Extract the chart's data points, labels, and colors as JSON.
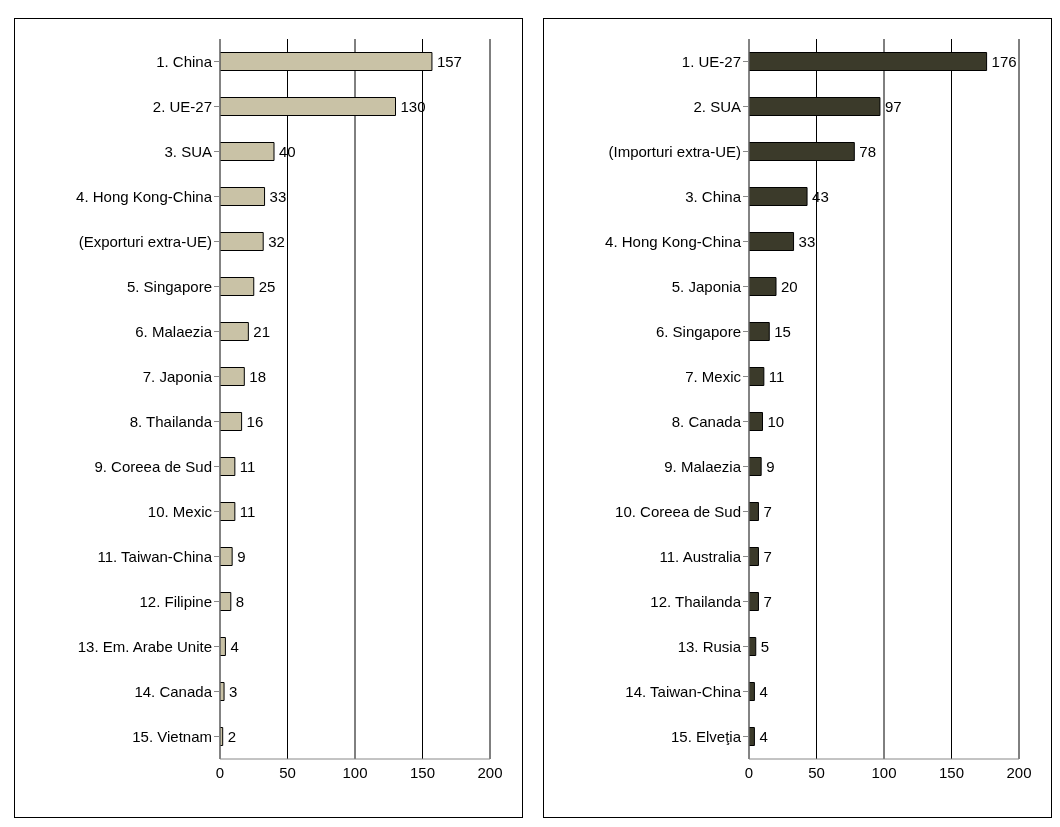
{
  "chart_data": [
    {
      "type": "bar",
      "orientation": "horizontal",
      "categories": [
        "1. China",
        "2. UE-27",
        "3. SUA",
        "4. Hong Kong-China",
        "(Exporturi extra-UE)",
        "5. Singapore",
        "6. Malaezia",
        "7. Japonia",
        "8. Thailanda",
        "9. Coreea de Sud",
        "10. Mexic",
        "11. Taiwan-China",
        "12. Filipine",
        "13. Em. Arabe Unite",
        "14. Canada",
        "15. Vietnam"
      ],
      "values": [
        157,
        130,
        40,
        33,
        32,
        25,
        21,
        18,
        16,
        11,
        11,
        9,
        8,
        4,
        3,
        2
      ],
      "color": "#c9c2a6",
      "xlim": [
        0,
        200
      ],
      "xticks": [
        0,
        50,
        100,
        150,
        200
      ],
      "grid": "x",
      "data_labels": true
    },
    {
      "type": "bar",
      "orientation": "horizontal",
      "categories": [
        "1. UE-27",
        "2. SUA",
        "(Importuri extra-UE)",
        "3. China",
        "4. Hong Kong-China",
        "5. Japonia",
        "6. Singapore",
        "7. Mexic",
        "8. Canada",
        "9. Malaezia",
        "10. Coreea de Sud",
        "11. Australia",
        "12. Thailanda",
        "13. Rusia",
        "14. Taiwan-China",
        "15. Elveţia"
      ],
      "values": [
        176,
        97,
        78,
        43,
        33,
        20,
        15,
        11,
        10,
        9,
        7,
        7,
        7,
        5,
        4,
        4
      ],
      "color": "#3b3a2a",
      "xlim": [
        0,
        200
      ],
      "xticks": [
        0,
        50,
        100,
        150,
        200
      ],
      "grid": "x",
      "data_labels": true
    }
  ]
}
